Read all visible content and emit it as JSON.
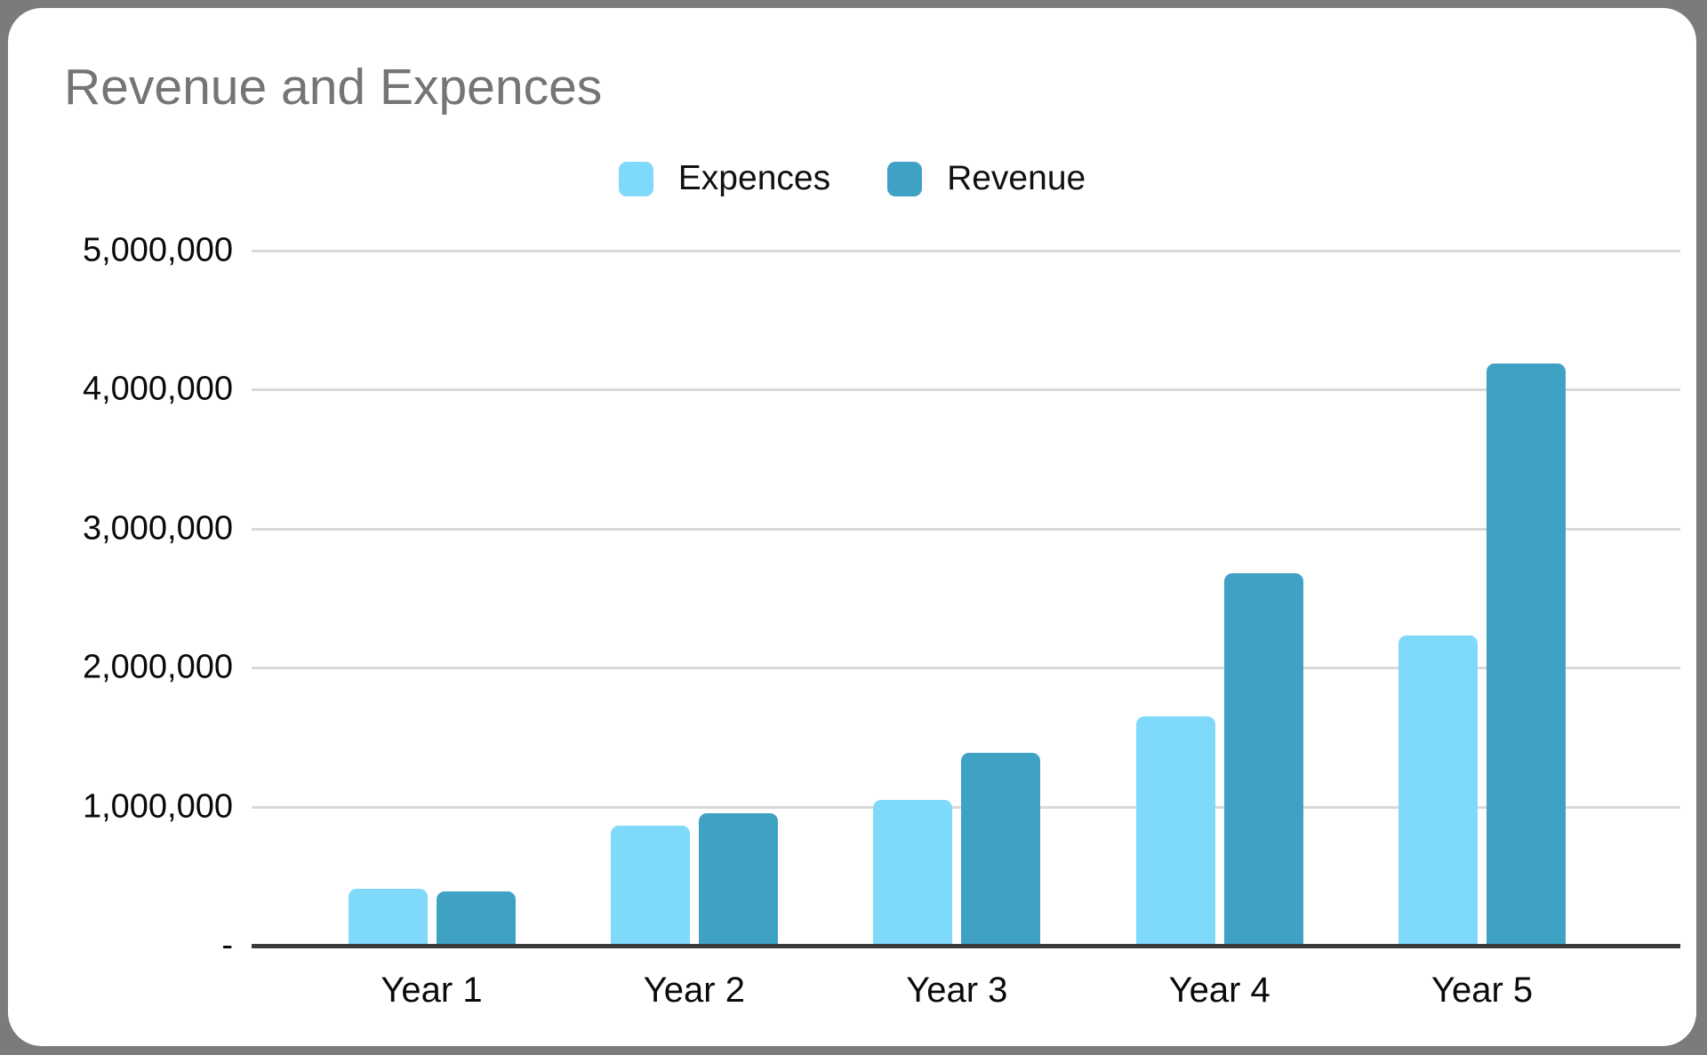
{
  "chart_data": {
    "type": "bar",
    "title": "Revenue and Expences",
    "categories": [
      "Year 1",
      "Year 2",
      "Year 3",
      "Year 4",
      "Year 5"
    ],
    "series": [
      {
        "name": "Expences",
        "color": "#7fd9fb",
        "values": [
          410000,
          860000,
          1050000,
          1650000,
          2230000
        ]
      },
      {
        "name": "Revenue",
        "color": "#3fa2c4",
        "values": [
          390000,
          950000,
          1390000,
          2680000,
          4190000
        ]
      }
    ],
    "ylim": [
      0,
      5000000
    ],
    "ytick_interval": 1000000,
    "ytick_labels": [
      "-",
      "1,000,000",
      "2,000,000",
      "3,000,000",
      "4,000,000",
      "5,000,000"
    ],
    "grid": true,
    "legend_position": "top-center",
    "xlabel": "",
    "ylabel": ""
  },
  "colors": {
    "page_background": "#7b7b7b",
    "card_background": "#ffffff",
    "title_text": "#757575",
    "gridline": "#d9d9d9",
    "axis_line": "#3b3b3b",
    "tick_text": "#0a0a0a",
    "expences_bar": "#7fd9fb",
    "revenue_bar": "#3fa2c4"
  }
}
